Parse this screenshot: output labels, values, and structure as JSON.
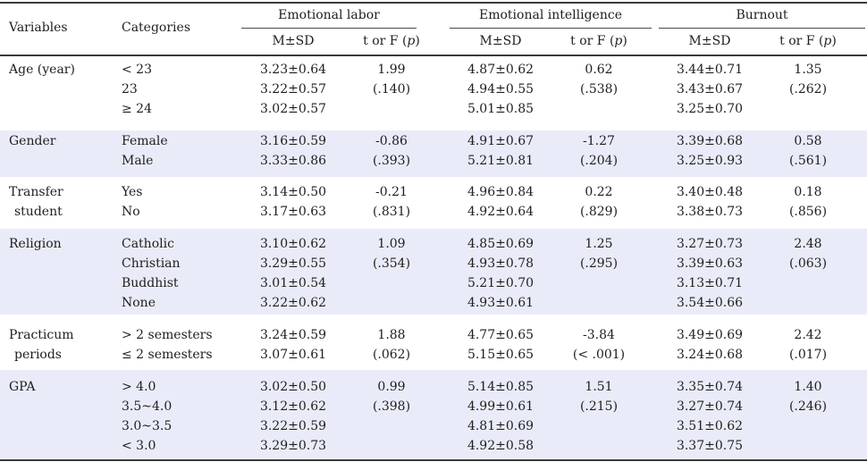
{
  "header": {
    "variables": "Variables",
    "categories": "Categories",
    "groups": [
      "Emotional labor",
      "Emotional intelligence",
      "Burnout"
    ],
    "msd": "M±SD",
    "test_prefix": "t or F (",
    "test_p": "p",
    "test_suffix": ")"
  },
  "rows": [
    {
      "variable": [
        "Age (year)"
      ],
      "categories": [
        "< 23",
        "23",
        "≥ 24"
      ],
      "el_msd": [
        "3.23±0.64",
        "3.22±0.57",
        "3.02±0.57"
      ],
      "el_test": [
        "1.99",
        "(.140)"
      ],
      "ei_msd": [
        "4.87±0.62",
        "4.94±0.55",
        "5.01±0.85"
      ],
      "ei_test": [
        "0.62",
        "(.538)"
      ],
      "bo_msd": [
        "3.44±0.71",
        "3.43±0.67",
        "3.25±0.70"
      ],
      "bo_test": [
        "1.35",
        "(.262)"
      ]
    },
    {
      "variable": [
        "Gender"
      ],
      "categories": [
        "Female",
        "Male"
      ],
      "el_msd": [
        "3.16±0.59",
        "3.33±0.86"
      ],
      "el_test": [
        "-0.86",
        "(.393)"
      ],
      "ei_msd": [
        "4.91±0.67",
        "5.21±0.81"
      ],
      "ei_test": [
        "-1.27",
        "(.204)"
      ],
      "bo_msd": [
        "3.39±0.68",
        "3.25±0.93"
      ],
      "bo_test": [
        "0.58",
        "(.561)"
      ]
    },
    {
      "variable": [
        "Transfer",
        "student"
      ],
      "categories": [
        "Yes",
        "No"
      ],
      "el_msd": [
        "3.14±0.50",
        "3.17±0.63"
      ],
      "el_test": [
        "-0.21",
        "(.831)"
      ],
      "ei_msd": [
        "4.96±0.84",
        "4.92±0.64"
      ],
      "ei_test": [
        "0.22",
        "(.829)"
      ],
      "bo_msd": [
        "3.40±0.48",
        "3.38±0.73"
      ],
      "bo_test": [
        "0.18",
        "(.856)"
      ]
    },
    {
      "variable": [
        "Religion"
      ],
      "categories": [
        "Catholic",
        "Christian",
        "Buddhist",
        "None"
      ],
      "el_msd": [
        "3.10±0.62",
        "3.29±0.55",
        "3.01±0.54",
        "3.22±0.62"
      ],
      "el_test": [
        "1.09",
        "(.354)"
      ],
      "ei_msd": [
        "4.85±0.69",
        "4.93±0.78",
        "5.21±0.70",
        "4.93±0.61"
      ],
      "ei_test": [
        "1.25",
        "(.295)"
      ],
      "bo_msd": [
        "3.27±0.73",
        "3.39±0.63",
        "3.13±0.71",
        "3.54±0.66"
      ],
      "bo_test": [
        "2.48",
        "(.063)"
      ]
    },
    {
      "variable": [
        "Practicum",
        "periods"
      ],
      "categories": [
        "> 2 semesters",
        "≤ 2 semesters"
      ],
      "el_msd": [
        "3.24±0.59",
        "3.07±0.61"
      ],
      "el_test": [
        "1.88",
        "(.062)"
      ],
      "ei_msd": [
        "4.77±0.65",
        "5.15±0.65"
      ],
      "ei_test": [
        "-3.84",
        "(< .001)"
      ],
      "bo_msd": [
        "3.49±0.69",
        "3.24±0.68"
      ],
      "bo_test": [
        "2.42",
        "(.017)"
      ]
    },
    {
      "variable": [
        "GPA"
      ],
      "categories": [
        "> 4.0",
        "3.5~4.0",
        "3.0~3.5",
        "< 3.0"
      ],
      "el_msd": [
        "3.02±0.50",
        "3.12±0.62",
        "3.22±0.59",
        "3.29±0.73"
      ],
      "el_test": [
        "0.99",
        "(.398)"
      ],
      "ei_msd": [
        "5.14±0.85",
        "4.99±0.61",
        "4.81±0.69",
        "4.92±0.58"
      ],
      "ei_test": [
        "1.51",
        "(.215)"
      ],
      "bo_msd": [
        "3.35±0.74",
        "3.27±0.74",
        "3.51±0.62",
        "3.37±0.75"
      ],
      "bo_test": [
        "1.40",
        "(.246)"
      ]
    }
  ]
}
